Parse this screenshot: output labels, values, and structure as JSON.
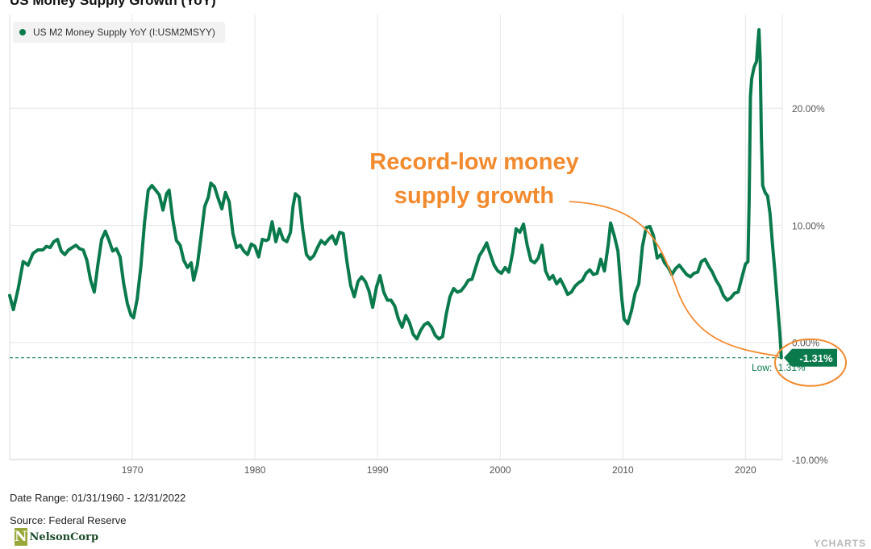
{
  "header": {
    "title": "US Money Supply Growth (YoY)"
  },
  "legend": {
    "label": "US M2 Money Supply YoY (I:USM2MSYY)"
  },
  "annotation": {
    "line1": "Record-low money",
    "line2": "supply growth"
  },
  "footer": {
    "date_range": "Date Range: 01/31/1960 - 12/31/2022",
    "source": "Source: Federal Reserve",
    "logo_text": "NelsonCorp",
    "watermark": "YCHARTS"
  },
  "colors": {
    "series": "#0a7a4c",
    "annotation": "#f28a2e",
    "grid": "#e6e6e6"
  },
  "chart_data": {
    "type": "line",
    "title": "US Money Supply Growth (YoY)",
    "xlabel": "",
    "ylabel": "",
    "x_range": [
      1960.0,
      2023.0
    ],
    "ylim": [
      -10,
      28
    ],
    "x_ticks": [
      1970,
      1980,
      1990,
      2000,
      2010,
      2020
    ],
    "y_ticks": [
      {
        "value": 20,
        "label": "20.00%"
      },
      {
        "value": 10,
        "label": "10.00%"
      },
      {
        "value": 0,
        "label": "0.00%"
      },
      {
        "value": -10,
        "label": "-10.00%"
      }
    ],
    "grid": true,
    "legend_position": "top-left",
    "last_value": {
      "value": -1.31,
      "label": "-1.31%"
    },
    "low_marker": {
      "value": -1.31,
      "label": "Low: -1.31%"
    },
    "series": [
      {
        "name": "US M2 Money Supply YoY (I:USM2MSYY)",
        "points": [
          [
            1960.0,
            4.0
          ],
          [
            1960.3,
            2.8
          ],
          [
            1960.7,
            4.6
          ],
          [
            1961.1,
            6.9
          ],
          [
            1961.5,
            6.6
          ],
          [
            1961.9,
            7.6
          ],
          [
            1962.3,
            7.9
          ],
          [
            1962.7,
            7.9
          ],
          [
            1963.0,
            8.2
          ],
          [
            1963.3,
            8.1
          ],
          [
            1963.6,
            8.6
          ],
          [
            1963.9,
            8.8
          ],
          [
            1964.2,
            7.8
          ],
          [
            1964.5,
            7.5
          ],
          [
            1964.8,
            7.9
          ],
          [
            1965.1,
            8.1
          ],
          [
            1965.4,
            8.3
          ],
          [
            1965.7,
            8.0
          ],
          [
            1966.0,
            7.9
          ],
          [
            1966.3,
            7.0
          ],
          [
            1966.6,
            5.3
          ],
          [
            1966.9,
            4.3
          ],
          [
            1967.2,
            6.7
          ],
          [
            1967.5,
            8.8
          ],
          [
            1967.8,
            9.5
          ],
          [
            1968.1,
            8.7
          ],
          [
            1968.4,
            7.8
          ],
          [
            1968.7,
            8.0
          ],
          [
            1969.0,
            7.3
          ],
          [
            1969.3,
            5.0
          ],
          [
            1969.6,
            3.3
          ],
          [
            1969.9,
            2.3
          ],
          [
            1970.1,
            2.1
          ],
          [
            1970.4,
            3.7
          ],
          [
            1970.7,
            6.5
          ],
          [
            1971.0,
            10.3
          ],
          [
            1971.3,
            13.0
          ],
          [
            1971.6,
            13.4
          ],
          [
            1971.9,
            13.0
          ],
          [
            1972.2,
            12.6
          ],
          [
            1972.5,
            11.3
          ],
          [
            1972.8,
            12.7
          ],
          [
            1973.0,
            13.0
          ],
          [
            1973.3,
            10.5
          ],
          [
            1973.6,
            8.7
          ],
          [
            1973.9,
            8.3
          ],
          [
            1974.2,
            7.0
          ],
          [
            1974.5,
            6.4
          ],
          [
            1974.8,
            6.8
          ],
          [
            1975.0,
            5.3
          ],
          [
            1975.3,
            6.6
          ],
          [
            1975.6,
            9.0
          ],
          [
            1975.9,
            11.6
          ],
          [
            1976.2,
            12.4
          ],
          [
            1976.4,
            13.6
          ],
          [
            1976.7,
            13.3
          ],
          [
            1977.0,
            12.3
          ],
          [
            1977.3,
            11.4
          ],
          [
            1977.6,
            12.8
          ],
          [
            1977.9,
            12.0
          ],
          [
            1978.2,
            9.3
          ],
          [
            1978.5,
            8.1
          ],
          [
            1978.8,
            8.3
          ],
          [
            1979.1,
            7.8
          ],
          [
            1979.4,
            7.5
          ],
          [
            1979.7,
            8.4
          ],
          [
            1980.0,
            8.2
          ],
          [
            1980.3,
            7.3
          ],
          [
            1980.6,
            8.8
          ],
          [
            1980.9,
            8.7
          ],
          [
            1981.1,
            8.8
          ],
          [
            1981.4,
            10.3
          ],
          [
            1981.7,
            8.6
          ],
          [
            1982.0,
            9.7
          ],
          [
            1982.3,
            8.8
          ],
          [
            1982.6,
            8.6
          ],
          [
            1982.9,
            9.4
          ],
          [
            1983.1,
            11.6
          ],
          [
            1983.3,
            12.7
          ],
          [
            1983.6,
            12.4
          ],
          [
            1983.9,
            9.6
          ],
          [
            1984.2,
            7.5
          ],
          [
            1984.5,
            7.1
          ],
          [
            1984.8,
            7.4
          ],
          [
            1985.1,
            8.1
          ],
          [
            1985.4,
            8.7
          ],
          [
            1985.7,
            8.4
          ],
          [
            1986.0,
            8.8
          ],
          [
            1986.3,
            9.1
          ],
          [
            1986.6,
            8.4
          ],
          [
            1986.9,
            9.4
          ],
          [
            1987.2,
            9.3
          ],
          [
            1987.5,
            6.9
          ],
          [
            1987.8,
            4.9
          ],
          [
            1988.1,
            3.9
          ],
          [
            1988.4,
            5.2
          ],
          [
            1988.7,
            5.6
          ],
          [
            1989.0,
            5.2
          ],
          [
            1989.3,
            4.4
          ],
          [
            1989.6,
            3.0
          ],
          [
            1989.9,
            4.7
          ],
          [
            1990.2,
            5.7
          ],
          [
            1990.5,
            4.3
          ],
          [
            1990.8,
            3.6
          ],
          [
            1991.1,
            3.6
          ],
          [
            1991.4,
            3.1
          ],
          [
            1991.7,
            2.0
          ],
          [
            1992.0,
            1.3
          ],
          [
            1992.3,
            2.3
          ],
          [
            1992.6,
            1.7
          ],
          [
            1992.9,
            0.7
          ],
          [
            1993.2,
            0.3
          ],
          [
            1993.5,
            1.0
          ],
          [
            1993.8,
            1.5
          ],
          [
            1994.1,
            1.7
          ],
          [
            1994.4,
            1.3
          ],
          [
            1994.7,
            0.6
          ],
          [
            1995.0,
            0.3
          ],
          [
            1995.3,
            0.5
          ],
          [
            1995.6,
            2.4
          ],
          [
            1995.9,
            3.9
          ],
          [
            1996.2,
            4.6
          ],
          [
            1996.5,
            4.3
          ],
          [
            1996.8,
            4.4
          ],
          [
            1997.1,
            4.8
          ],
          [
            1997.4,
            5.3
          ],
          [
            1997.7,
            5.4
          ],
          [
            1998.0,
            6.4
          ],
          [
            1998.3,
            7.4
          ],
          [
            1998.6,
            7.9
          ],
          [
            1998.9,
            8.5
          ],
          [
            1999.2,
            7.5
          ],
          [
            1999.5,
            6.6
          ],
          [
            1999.8,
            6.1
          ],
          [
            2000.1,
            5.9
          ],
          [
            2000.4,
            6.4
          ],
          [
            2000.7,
            6.0
          ],
          [
            2001.0,
            7.6
          ],
          [
            2001.3,
            9.7
          ],
          [
            2001.6,
            9.4
          ],
          [
            2001.9,
            10.1
          ],
          [
            2002.2,
            8.3
          ],
          [
            2002.5,
            7.0
          ],
          [
            2002.8,
            6.8
          ],
          [
            2003.1,
            7.2
          ],
          [
            2003.4,
            8.3
          ],
          [
            2003.7,
            6.1
          ],
          [
            2004.0,
            5.4
          ],
          [
            2004.3,
            5.7
          ],
          [
            2004.6,
            5.0
          ],
          [
            2004.9,
            5.4
          ],
          [
            2005.2,
            4.8
          ],
          [
            2005.5,
            4.1
          ],
          [
            2005.8,
            4.3
          ],
          [
            2006.1,
            4.8
          ],
          [
            2006.4,
            5.1
          ],
          [
            2006.7,
            5.3
          ],
          [
            2007.0,
            5.9
          ],
          [
            2007.3,
            6.2
          ],
          [
            2007.6,
            5.8
          ],
          [
            2007.9,
            5.9
          ],
          [
            2008.2,
            7.1
          ],
          [
            2008.5,
            6.1
          ],
          [
            2008.8,
            8.3
          ],
          [
            2009.0,
            10.2
          ],
          [
            2009.3,
            9.1
          ],
          [
            2009.6,
            7.8
          ],
          [
            2009.9,
            3.9
          ],
          [
            2010.1,
            2.0
          ],
          [
            2010.4,
            1.6
          ],
          [
            2010.7,
            2.7
          ],
          [
            2011.0,
            4.2
          ],
          [
            2011.3,
            5.0
          ],
          [
            2011.6,
            8.2
          ],
          [
            2011.9,
            9.8
          ],
          [
            2012.2,
            9.9
          ],
          [
            2012.5,
            9.1
          ],
          [
            2012.8,
            7.2
          ],
          [
            2013.1,
            7.5
          ],
          [
            2013.4,
            6.8
          ],
          [
            2013.7,
            6.4
          ],
          [
            2014.0,
            5.8
          ],
          [
            2014.3,
            6.3
          ],
          [
            2014.6,
            6.6
          ],
          [
            2014.9,
            6.2
          ],
          [
            2015.2,
            5.8
          ],
          [
            2015.5,
            5.6
          ],
          [
            2015.8,
            5.9
          ],
          [
            2016.1,
            6.0
          ],
          [
            2016.4,
            6.9
          ],
          [
            2016.7,
            7.1
          ],
          [
            2017.0,
            6.5
          ],
          [
            2017.3,
            6.0
          ],
          [
            2017.6,
            5.3
          ],
          [
            2017.9,
            4.8
          ],
          [
            2018.2,
            4.0
          ],
          [
            2018.5,
            3.6
          ],
          [
            2018.8,
            3.8
          ],
          [
            2019.1,
            4.2
          ],
          [
            2019.4,
            4.3
          ],
          [
            2019.7,
            5.5
          ],
          [
            2020.0,
            6.7
          ],
          [
            2020.2,
            6.9
          ],
          [
            2020.3,
            12.0
          ],
          [
            2020.4,
            21.0
          ],
          [
            2020.5,
            22.5
          ],
          [
            2020.7,
            23.5
          ],
          [
            2020.9,
            24.0
          ],
          [
            2021.0,
            25.5
          ],
          [
            2021.1,
            26.7
          ],
          [
            2021.2,
            24.0
          ],
          [
            2021.3,
            17.5
          ],
          [
            2021.4,
            13.4
          ],
          [
            2021.6,
            12.8
          ],
          [
            2021.8,
            12.5
          ],
          [
            2022.0,
            11.0
          ],
          [
            2022.2,
            8.4
          ],
          [
            2022.4,
            6.0
          ],
          [
            2022.6,
            3.4
          ],
          [
            2022.8,
            0.8
          ],
          [
            2022.92,
            -1.31
          ]
        ]
      }
    ]
  }
}
